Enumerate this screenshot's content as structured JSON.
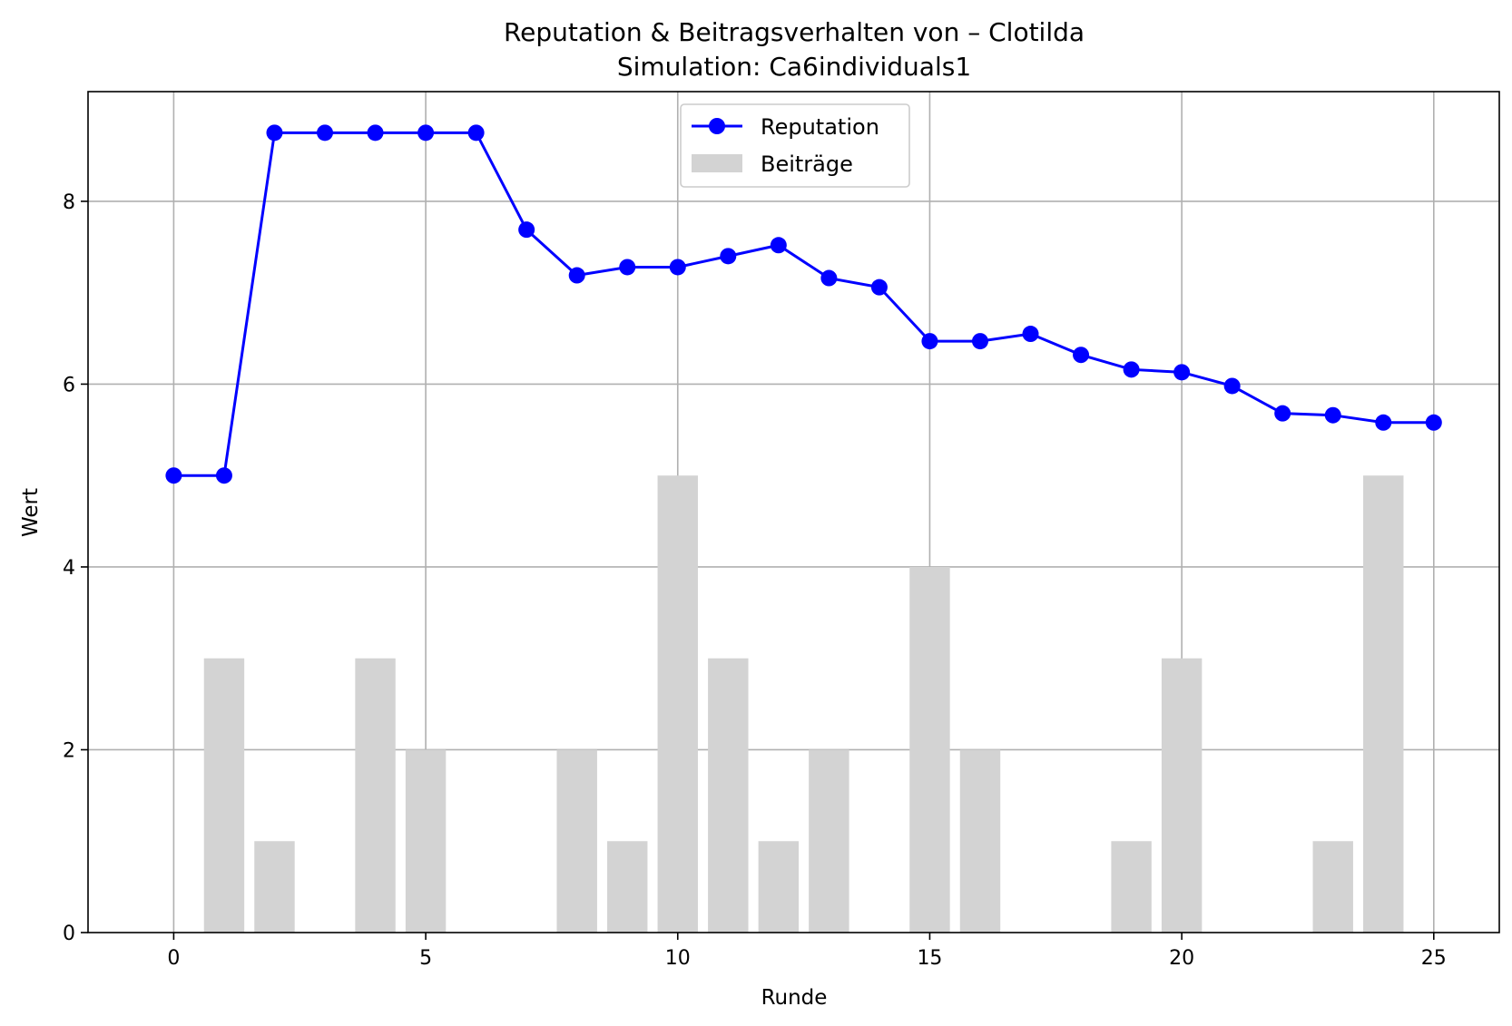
{
  "chart_data": {
    "type": "bar+line",
    "title": "Reputation & Beitragsverhalten von – Clotilda",
    "subtitle": "Simulation: Ca6individuals1",
    "xlabel": "Runde",
    "ylabel": "Wert",
    "xlim": [
      -1.7,
      26.3
    ],
    "ylim": [
      0,
      9.2
    ],
    "xticks": [
      0,
      5,
      10,
      15,
      20,
      25
    ],
    "yticks": [
      0,
      2,
      4,
      6,
      8
    ],
    "grid": true,
    "legend_position": "top-center",
    "series": [
      {
        "name": "Reputation",
        "kind": "line",
        "marker": "circle",
        "color": "#0000ff",
        "x": [
          0,
          1,
          2,
          3,
          4,
          5,
          6,
          7,
          8,
          9,
          10,
          11,
          12,
          13,
          14,
          15,
          16,
          17,
          18,
          19,
          20,
          21,
          22,
          23,
          24,
          25
        ],
        "values": [
          5.0,
          5.0,
          8.75,
          8.75,
          8.75,
          8.75,
          8.75,
          7.69,
          7.19,
          7.28,
          7.28,
          7.4,
          7.52,
          7.16,
          7.06,
          6.47,
          6.47,
          6.55,
          6.32,
          6.16,
          6.13,
          5.98,
          5.68,
          5.66,
          5.58,
          5.58
        ]
      },
      {
        "name": "Beiträge",
        "kind": "bar",
        "color": "#d3d3d3",
        "x": [
          1,
          2,
          4,
          5,
          8,
          9,
          10,
          11,
          12,
          13,
          15,
          16,
          19,
          20,
          23,
          24
        ],
        "values": [
          3,
          1,
          3,
          2,
          2,
          1,
          5,
          3,
          1,
          2,
          4,
          2,
          1,
          3,
          1,
          5
        ]
      }
    ]
  }
}
